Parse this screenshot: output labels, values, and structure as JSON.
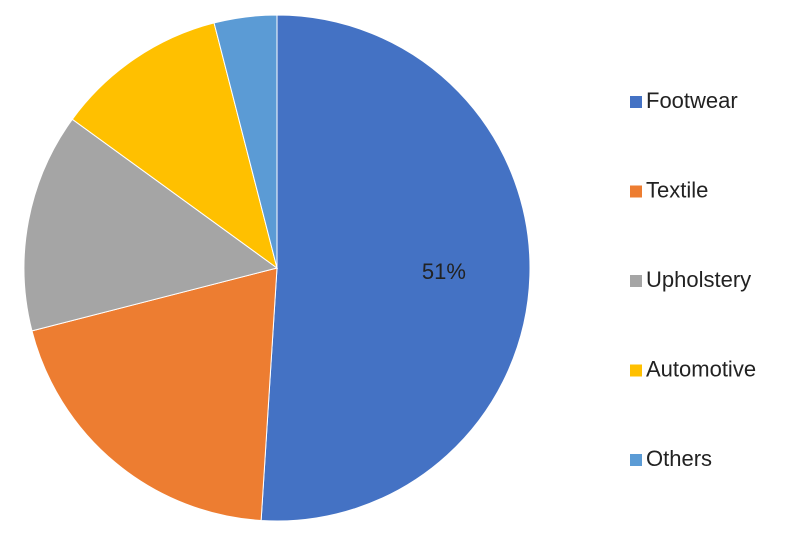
{
  "chart_data": {
    "type": "pie",
    "categories": [
      "Footwear",
      "Textile",
      "Upholstery",
      "Automotive",
      "Others"
    ],
    "values": [
      51,
      20,
      14,
      11,
      4
    ],
    "value_labels": [
      "51%",
      null,
      null,
      null,
      null
    ],
    "colors": [
      "#4472c4",
      "#ed7d31",
      "#a5a5a5",
      "#ffc000",
      "#5b9bd5"
    ],
    "legend": "right"
  }
}
